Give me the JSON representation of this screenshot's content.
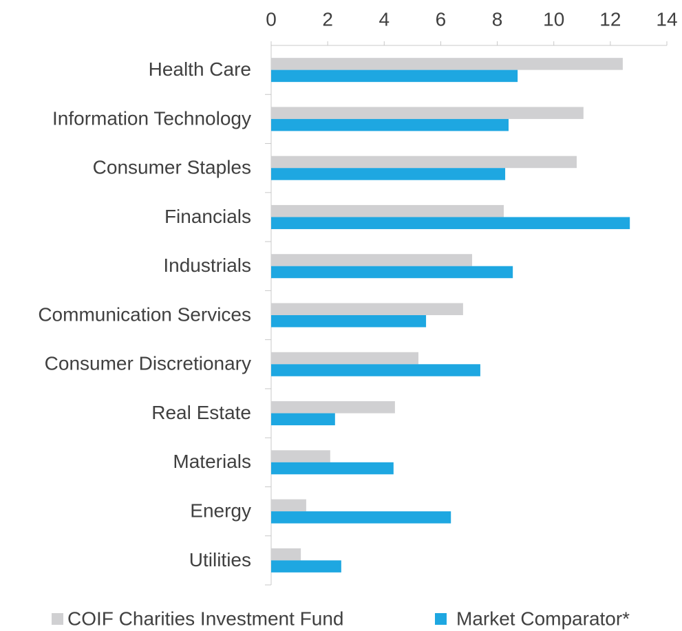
{
  "chart_data": {
    "type": "bar",
    "orientation": "horizontal",
    "categories": [
      "Health Care",
      "Information Technology",
      "Consumer Staples",
      "Financials",
      "Industrials",
      "Communication Services",
      "Consumer Discretionary",
      "Real Estate",
      "Materials",
      "Energy",
      "Utilities"
    ],
    "series": [
      {
        "name": "COIF Charities Investment Fund",
        "color": "#d0d0d2",
        "values": [
          12.44,
          11.05,
          10.81,
          8.23,
          7.11,
          6.79,
          5.21,
          4.38,
          2.09,
          1.24,
          1.05
        ]
      },
      {
        "name": "Market Comparator*",
        "color": "#1ea7e1",
        "values": [
          8.72,
          8.4,
          8.28,
          12.69,
          8.55,
          5.48,
          7.4,
          2.26,
          4.33,
          6.36,
          2.48
        ]
      }
    ],
    "xlim": [
      0,
      14
    ],
    "xticks": [
      0,
      2,
      4,
      6,
      8,
      10,
      12,
      14
    ],
    "grid": false,
    "legend": "bottom"
  }
}
